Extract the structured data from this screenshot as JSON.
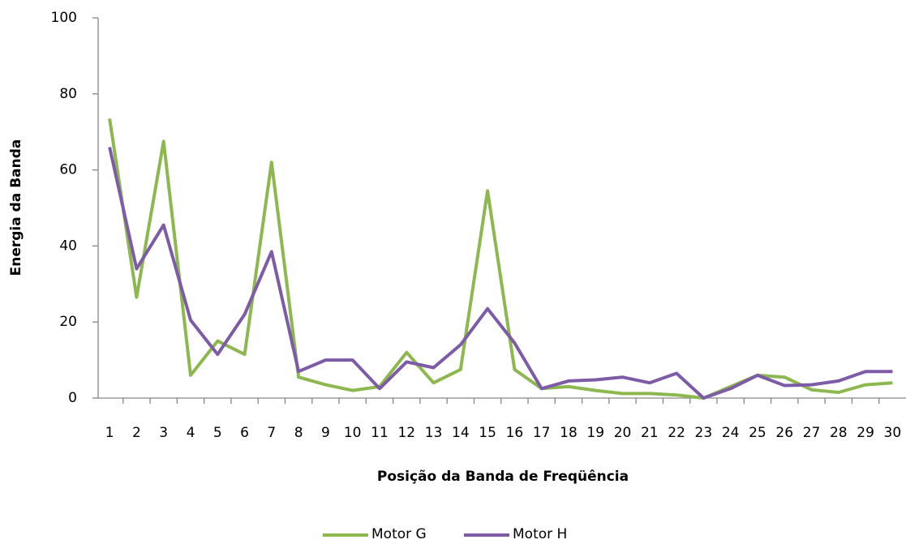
{
  "chart_data": {
    "type": "line",
    "x_label": "Posição da Banda de Freqüência",
    "y_label": "Energia da Banda",
    "categories": [
      "1",
      "2",
      "3",
      "4",
      "5",
      "6",
      "7",
      "8",
      "9",
      "10",
      "11",
      "12",
      "13",
      "14",
      "15",
      "16",
      "17",
      "18",
      "19",
      "20",
      "21",
      "22",
      "23",
      "24",
      "25",
      "26",
      "27",
      "28",
      "29",
      "30"
    ],
    "series": [
      {
        "name": "Motor G",
        "color": "#8cb84f",
        "values": [
          73.5,
          26.5,
          67.5,
          6,
          15,
          11.5,
          62,
          5.5,
          3.5,
          2,
          3,
          12,
          4,
          7.5,
          54.5,
          7.5,
          2.5,
          3,
          2,
          1.2,
          1.2,
          0.8,
          0,
          3,
          6,
          5.5,
          2.2,
          1.5,
          3.5,
          4
        ]
      },
      {
        "name": "Motor H",
        "color": "#7d5ba6",
        "values": [
          66,
          34,
          45.5,
          20.5,
          11.5,
          22,
          38.5,
          7,
          10,
          10,
          2.5,
          9.5,
          8,
          14,
          23.5,
          14.5,
          2.5,
          4.5,
          4.8,
          5.5,
          4,
          6.5,
          0,
          2.5,
          6,
          3.3,
          3.5,
          4.5,
          7,
          7
        ]
      }
    ],
    "ylim": [
      0,
      100
    ],
    "yticks": [
      0,
      20,
      40,
      60,
      80,
      100
    ],
    "grid": false,
    "legend": "bottom"
  }
}
